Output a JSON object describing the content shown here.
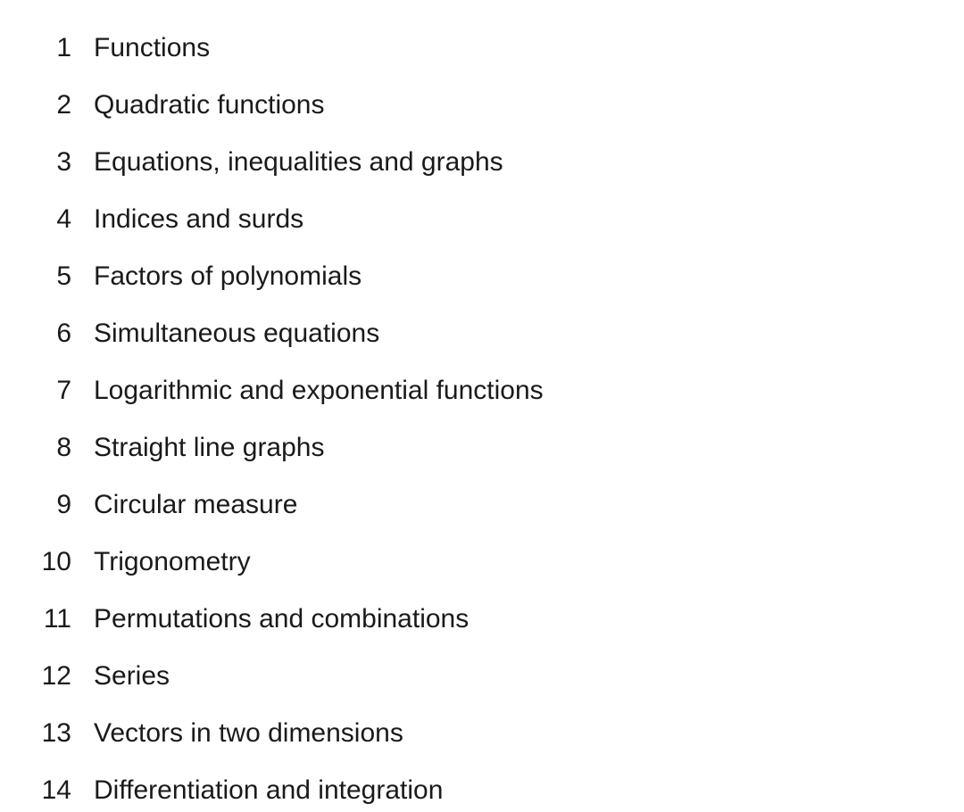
{
  "toc": {
    "text_color": "#1a1a1a",
    "background_color": "#ffffff",
    "font_size": 30,
    "items": [
      {
        "number": "1",
        "title": "Functions"
      },
      {
        "number": "2",
        "title": "Quadratic functions"
      },
      {
        "number": "3",
        "title": "Equations, inequalities and graphs"
      },
      {
        "number": "4",
        "title": "Indices and surds"
      },
      {
        "number": "5",
        "title": "Factors of polynomials"
      },
      {
        "number": "6",
        "title": "Simultaneous equations"
      },
      {
        "number": "7",
        "title": "Logarithmic and exponential functions"
      },
      {
        "number": "8",
        "title": "Straight line graphs"
      },
      {
        "number": "9",
        "title": "Circular measure"
      },
      {
        "number": "10",
        "title": "Trigonometry"
      },
      {
        "number": "11",
        "title": "Permutations and combinations"
      },
      {
        "number": "12",
        "title": "Series"
      },
      {
        "number": "13",
        "title": "Vectors in two dimensions"
      },
      {
        "number": "14",
        "title": "Differentiation and integration"
      }
    ]
  }
}
